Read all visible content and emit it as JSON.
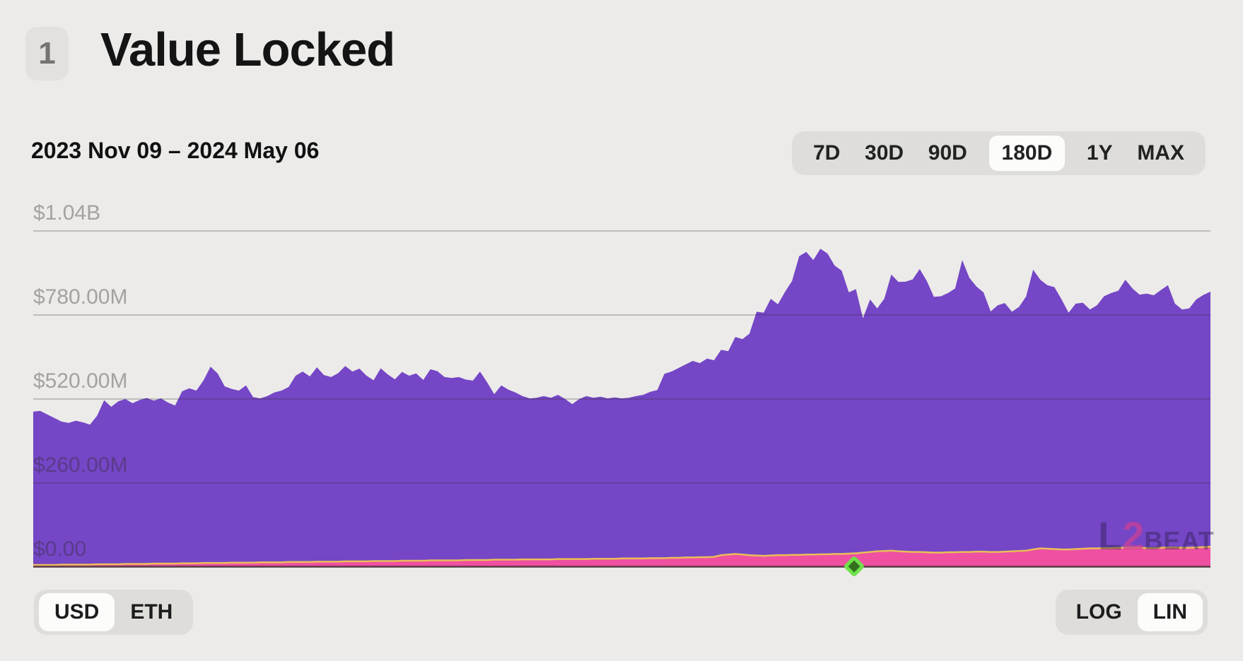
{
  "page": {
    "background": "#ECEBE9"
  },
  "header": {
    "badge": "1",
    "title": "Value Locked"
  },
  "toolbar": {
    "date_range": "2023 Nov 09 – 2024 May 06",
    "ranges": [
      "7D",
      "30D",
      "90D",
      "180D",
      "1Y",
      "MAX"
    ],
    "selected_range": "180D"
  },
  "watermark": {
    "part_l": "L",
    "part_2": "2",
    "part_beat": "BEAT"
  },
  "footer": {
    "currency_options": [
      "USD",
      "ETH"
    ],
    "selected_currency": "USD",
    "scale_options": [
      "LOG",
      "LIN"
    ],
    "selected_scale": "LIN"
  },
  "chart_data": {
    "type": "area",
    "title": "Value Locked",
    "x_range": [
      "2023 Nov 09",
      "2024 May 06"
    ],
    "unit": "USD millions",
    "ylim": [
      0,
      1040
    ],
    "grid": true,
    "yticks": [
      {
        "label": "$1.04B",
        "value": 1040
      },
      {
        "label": "$780.00M",
        "value": 780
      },
      {
        "label": "$520.00M",
        "value": 520
      },
      {
        "label": "$260.00M",
        "value": 260
      },
      {
        "label": "$0.00",
        "value": 0
      }
    ],
    "series": [
      {
        "name": "total-value-locked",
        "color": "#7546C6",
        "values": [
          481,
          483,
          472,
          461,
          450,
          446,
          453,
          448,
          441,
          468,
          516,
          496,
          513,
          520,
          507,
          517,
          523,
          515,
          522,
          509,
          500,
          544,
          553,
          546,
          577,
          620,
          599,
          559,
          551,
          546,
          562,
          526,
          522,
          529,
          540,
          546,
          557,
          592,
          605,
          590,
          618,
          594,
          588,
          600,
          622,
          605,
          614,
          592,
          578,
          615,
          596,
          581,
          604,
          592,
          599,
          579,
          612,
          606,
          588,
          585,
          588,
          580,
          577,
          605,
          572,
          535,
          562,
          549,
          540,
          529,
          522,
          524,
          529,
          524,
          533,
          520,
          504,
          520,
          529,
          524,
          527,
          522,
          525,
          522,
          524,
          529,
          533,
          542,
          548,
          598,
          605,
          616,
          627,
          638,
          631,
          645,
          640,
          672,
          668,
          712,
          705,
          722,
          790,
          787,
          830,
          813,
          851,
          885,
          962,
          975,
          950,
          985,
          970,
          933,
          917,
          850,
          860,
          770,
          828,
          800,
          830,
          905,
          882,
          883,
          890,
          922,
          885,
          836,
          838,
          848,
          862,
          950,
          895,
          868,
          850,
          791,
          810,
          817,
          790,
          805,
          837,
          920,
          889,
          872,
          866,
          828,
          787,
          815,
          818,
          797,
          810,
          838,
          848,
          855,
          889,
          862,
          843,
          846,
          841,
          857,
          872,
          815,
          797,
          800,
          828,
          842,
          852
        ]
      },
      {
        "name": "secondary-value-locked",
        "color": "#EF50A2",
        "stroke": "#E9BE58",
        "values": [
          4,
          4,
          4,
          4,
          5,
          5,
          5,
          5,
          5,
          6,
          6,
          6,
          6,
          7,
          7,
          7,
          7,
          8,
          8,
          8,
          8,
          9,
          9,
          9,
          10,
          10,
          10,
          10,
          11,
          11,
          11,
          11,
          12,
          12,
          12,
          12,
          13,
          13,
          13,
          13,
          14,
          14,
          14,
          14,
          15,
          15,
          15,
          15,
          16,
          16,
          16,
          16,
          17,
          17,
          17,
          17,
          18,
          18,
          18,
          18,
          18,
          19,
          19,
          19,
          19,
          20,
          20,
          20,
          20,
          21,
          21,
          21,
          21,
          21,
          22,
          22,
          22,
          22,
          22,
          23,
          23,
          23,
          23,
          24,
          24,
          24,
          24,
          25,
          25,
          25,
          26,
          26,
          27,
          27,
          28,
          28,
          29,
          34,
          36,
          38,
          36,
          34,
          33,
          32,
          33,
          34,
          34,
          35,
          35,
          36,
          36,
          37,
          37,
          38,
          38,
          39,
          40,
          42,
          44,
          46,
          47,
          48,
          46,
          45,
          44,
          44,
          43,
          42,
          42,
          43,
          43,
          44,
          44,
          45,
          45,
          44,
          44,
          45,
          46,
          47,
          48,
          52,
          55,
          54,
          53,
          52,
          52,
          53,
          54,
          55,
          55,
          56,
          56,
          57,
          57,
          57,
          57,
          56,
          56,
          57,
          58,
          58,
          57,
          57,
          58,
          59,
          60
        ]
      }
    ],
    "milestone_marker": {
      "shape": "diamond",
      "position_fraction": 0.697,
      "fill": "#336F1C",
      "border": "#6FE14B"
    }
  }
}
